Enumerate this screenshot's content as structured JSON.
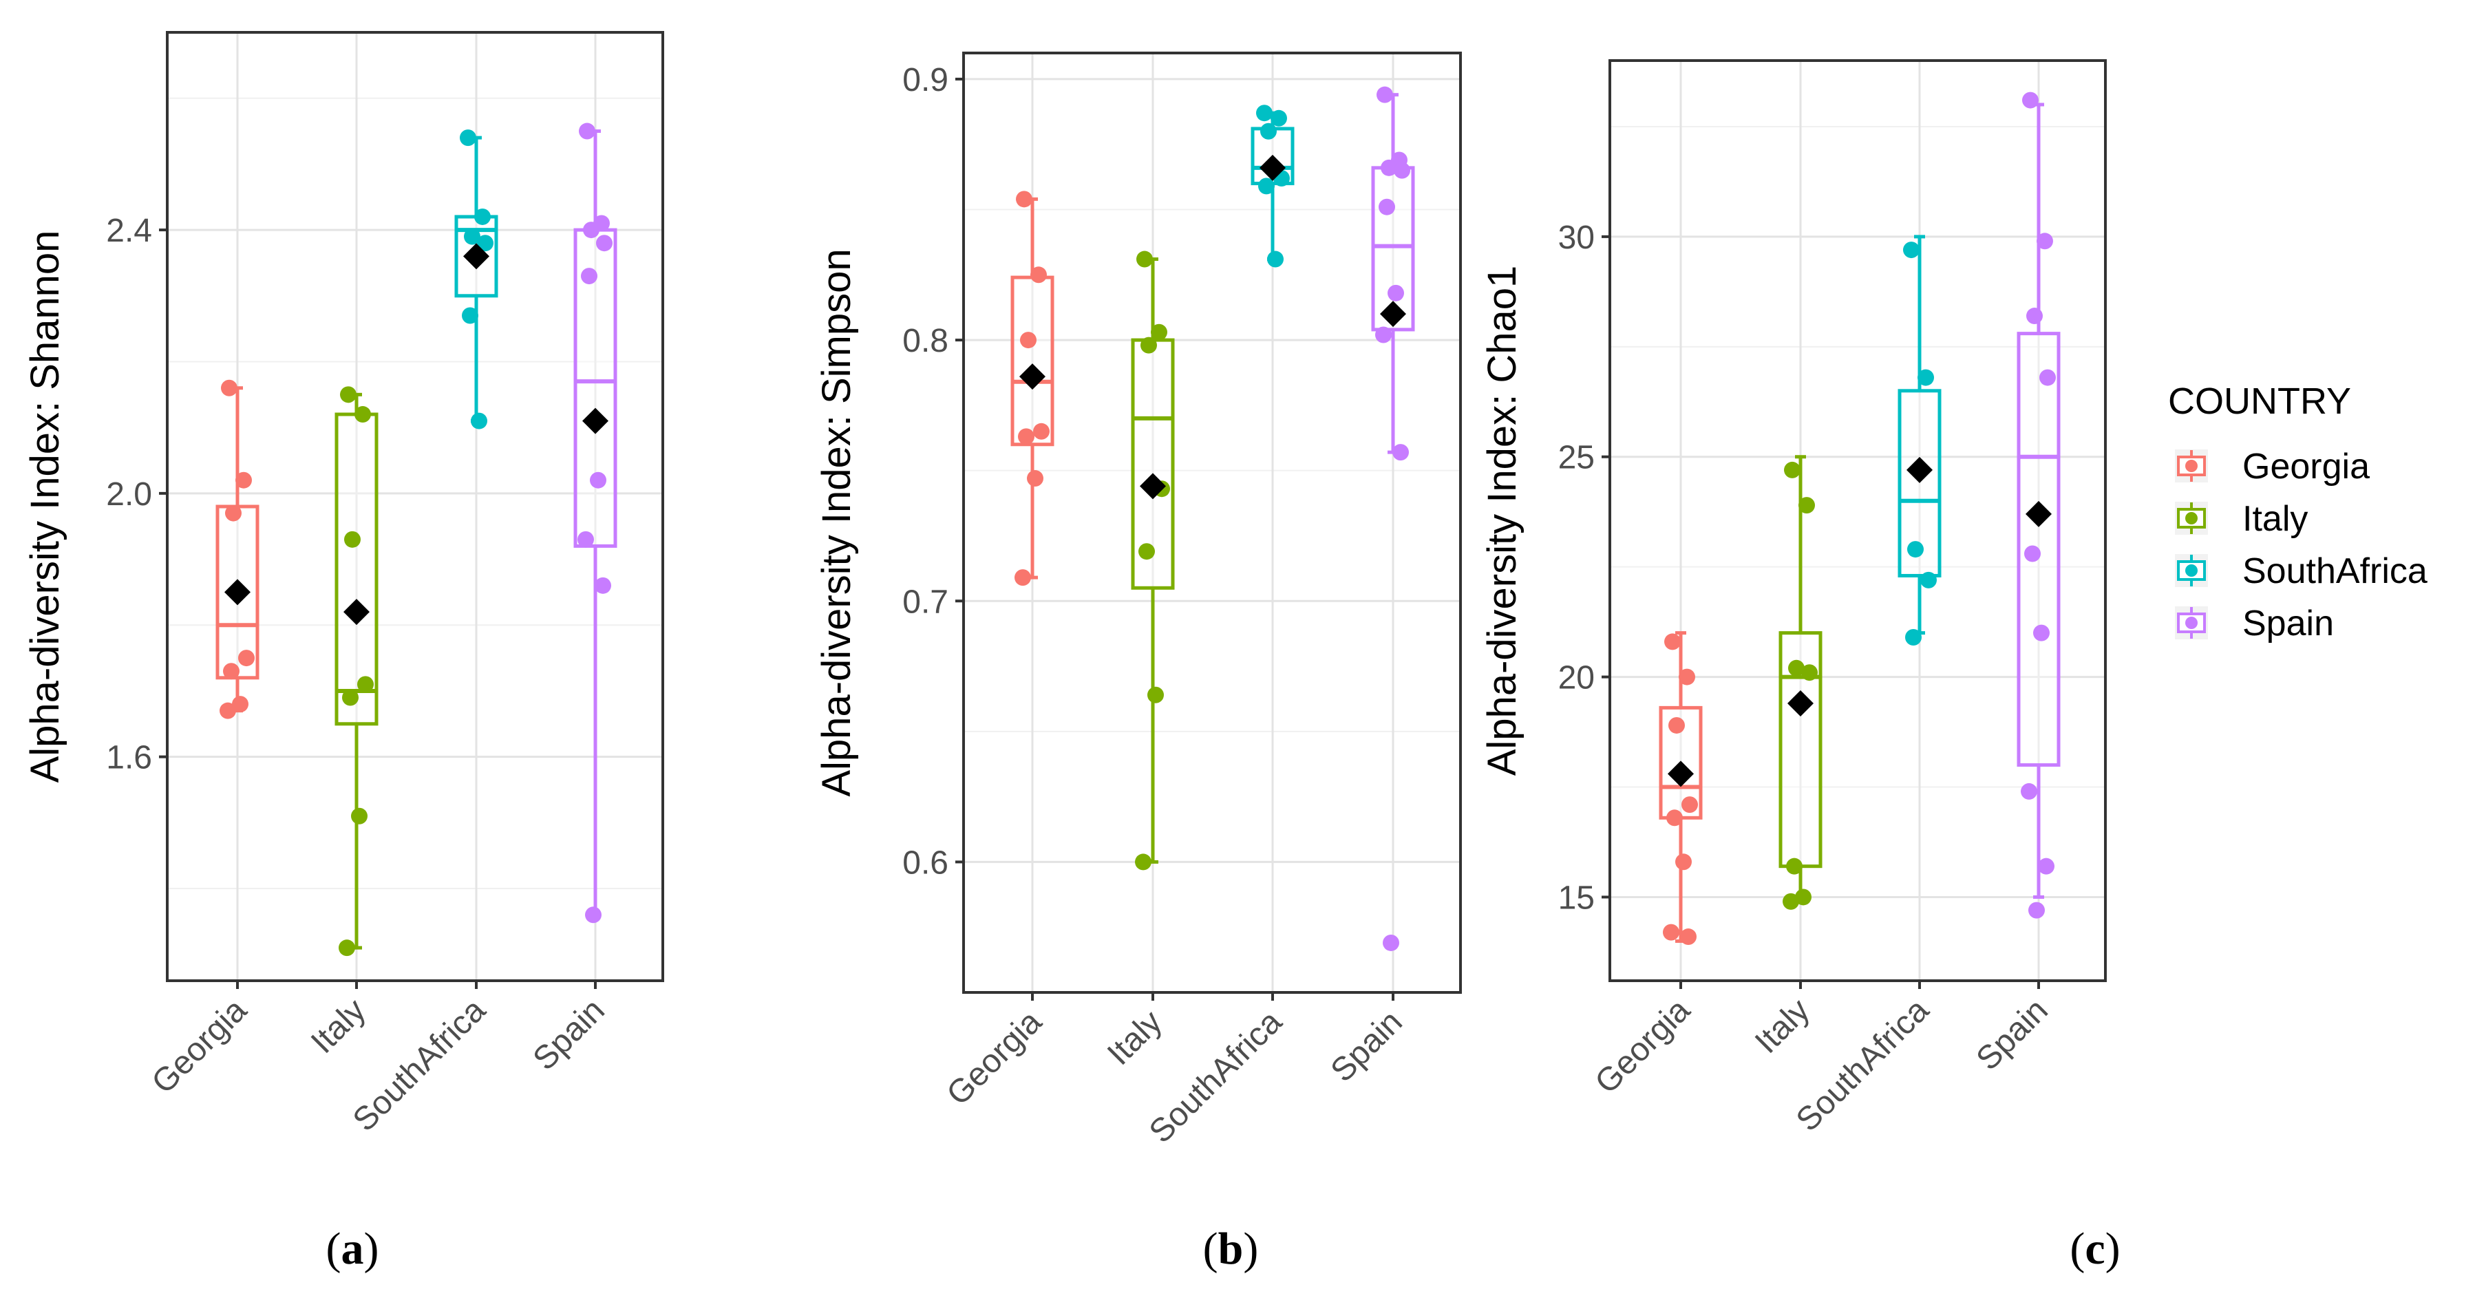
{
  "figure": {
    "captions": [
      "(a)",
      "(b)",
      "(c)"
    ],
    "caption_letters": [
      "a",
      "b",
      "c"
    ]
  },
  "legend": {
    "title": "COUNTRY",
    "items": [
      {
        "label": "Georgia",
        "color": "#F8766D"
      },
      {
        "label": "Italy",
        "color": "#7CAE00"
      },
      {
        "label": "SouthAfrica",
        "color": "#00BFC4"
      },
      {
        "label": "Spain",
        "color": "#C77CFF"
      }
    ]
  },
  "chart_data": [
    {
      "type": "boxplot",
      "panel": "a",
      "ylabel": "Alpha-diversity Index: Shannon",
      "ylim": [
        1.26,
        2.7
      ],
      "yticks": [
        1.6,
        2.0,
        2.4
      ],
      "ytick_labels": [
        "1.6",
        "2.0",
        "2.4"
      ],
      "yminor": [
        1.4,
        1.8,
        2.2,
        2.6
      ],
      "categories": [
        "Georgia",
        "Italy",
        "SouthAfrica",
        "Spain"
      ],
      "boxes": [
        {
          "group": "Georgia",
          "min": 1.67,
          "q1": 1.72,
          "median": 1.8,
          "q3": 1.98,
          "max": 2.16,
          "mean": 1.85
        },
        {
          "group": "Italy",
          "min": 1.31,
          "q1": 1.65,
          "median": 1.7,
          "q3": 2.12,
          "max": 2.15,
          "mean": 1.82
        },
        {
          "group": "SouthAfrica",
          "min": 2.11,
          "q1": 2.3,
          "median": 2.4,
          "q3": 2.42,
          "max": 2.54,
          "mean": 2.36
        },
        {
          "group": "Spain",
          "min": 1.36,
          "q1": 1.92,
          "median": 2.17,
          "q3": 2.4,
          "max": 2.55,
          "mean": 2.11
        }
      ],
      "points": [
        {
          "group": "Georgia",
          "values": [
            2.16,
            2.02,
            1.97,
            1.75,
            1.73,
            1.68,
            1.67
          ]
        },
        {
          "group": "Italy",
          "values": [
            2.15,
            2.12,
            1.93,
            1.71,
            1.69,
            1.51,
            1.31
          ]
        },
        {
          "group": "SouthAfrica",
          "values": [
            2.54,
            2.42,
            2.39,
            2.38,
            2.27,
            2.11
          ]
        },
        {
          "group": "Spain",
          "values": [
            2.55,
            2.41,
            2.4,
            2.38,
            2.33,
            2.02,
            1.93,
            1.86,
            1.36
          ]
        }
      ]
    },
    {
      "type": "boxplot",
      "panel": "b",
      "ylabel": "Alpha-diversity Index: Simpson",
      "ylim": [
        0.55,
        0.91
      ],
      "yticks": [
        0.6,
        0.7,
        0.8,
        0.9
      ],
      "ytick_labels": [
        "0.6",
        "0.7",
        "0.8",
        "0.9"
      ],
      "yminor": [
        0.65,
        0.75,
        0.85
      ],
      "categories": [
        "Georgia",
        "Italy",
        "SouthAfrica",
        "Spain"
      ],
      "boxes": [
        {
          "group": "Georgia",
          "min": 0.709,
          "q1": 0.76,
          "median": 0.784,
          "q3": 0.824,
          "max": 0.854,
          "mean": 0.786
        },
        {
          "group": "Italy",
          "min": 0.6,
          "q1": 0.705,
          "median": 0.77,
          "q3": 0.8,
          "max": 0.831,
          "mean": 0.744
        },
        {
          "group": "SouthAfrica",
          "min": 0.831,
          "q1": 0.86,
          "median": 0.866,
          "q3": 0.881,
          "max": 0.887,
          "mean": 0.866
        },
        {
          "group": "Spain",
          "min": 0.757,
          "q1": 0.804,
          "median": 0.836,
          "q3": 0.866,
          "max": 0.894,
          "mean": 0.81
        }
      ],
      "points": [
        {
          "group": "Georgia",
          "values": [
            0.854,
            0.825,
            0.8,
            0.765,
            0.763,
            0.747,
            0.709
          ]
        },
        {
          "group": "Italy",
          "values": [
            0.831,
            0.803,
            0.798,
            0.743,
            0.719,
            0.664,
            0.6
          ]
        },
        {
          "group": "SouthAfrica",
          "values": [
            0.887,
            0.885,
            0.88,
            0.862,
            0.859,
            0.831
          ]
        },
        {
          "group": "Spain",
          "values": [
            0.894,
            0.869,
            0.866,
            0.865,
            0.851,
            0.818,
            0.802,
            0.757,
            0.569
          ]
        }
      ]
    },
    {
      "type": "boxplot",
      "panel": "c",
      "ylabel": "Alpha-diversity Index: Chao1",
      "ylim": [
        13.1,
        34.0
      ],
      "yticks": [
        15,
        20,
        25,
        30
      ],
      "ytick_labels": [
        "15",
        "20",
        "25",
        "30"
      ],
      "yminor": [
        17.5,
        22.5,
        27.5,
        32.5
      ],
      "categories": [
        "Georgia",
        "Italy",
        "SouthAfrica",
        "Spain"
      ],
      "boxes": [
        {
          "group": "Georgia",
          "min": 14.0,
          "q1": 16.8,
          "median": 17.5,
          "q3": 19.3,
          "max": 21.0,
          "mean": 17.8
        },
        {
          "group": "Italy",
          "min": 15.0,
          "q1": 15.7,
          "median": 20.0,
          "q3": 21.0,
          "max": 25.0,
          "mean": 19.4
        },
        {
          "group": "SouthAfrica",
          "min": 21.0,
          "q1": 22.3,
          "median": 24.0,
          "q3": 26.5,
          "max": 30.0,
          "mean": 24.7
        },
        {
          "group": "Spain",
          "min": 15.0,
          "q1": 18.0,
          "median": 25.0,
          "q3": 27.8,
          "max": 33.0,
          "mean": 23.7
        }
      ],
      "points": [
        {
          "group": "Georgia",
          "values": [
            20.8,
            20.0,
            18.9,
            17.1,
            16.8,
            15.8,
            14.2,
            14.1
          ]
        },
        {
          "group": "Italy",
          "values": [
            24.7,
            23.9,
            20.2,
            20.1,
            15.7,
            15.0,
            14.9
          ]
        },
        {
          "group": "SouthAfrica",
          "values": [
            29.7,
            26.8,
            22.9,
            22.2,
            20.9
          ]
        },
        {
          "group": "Spain",
          "values": [
            33.1,
            29.9,
            28.2,
            26.8,
            22.8,
            21.0,
            17.4,
            15.7,
            14.7
          ]
        }
      ]
    }
  ]
}
